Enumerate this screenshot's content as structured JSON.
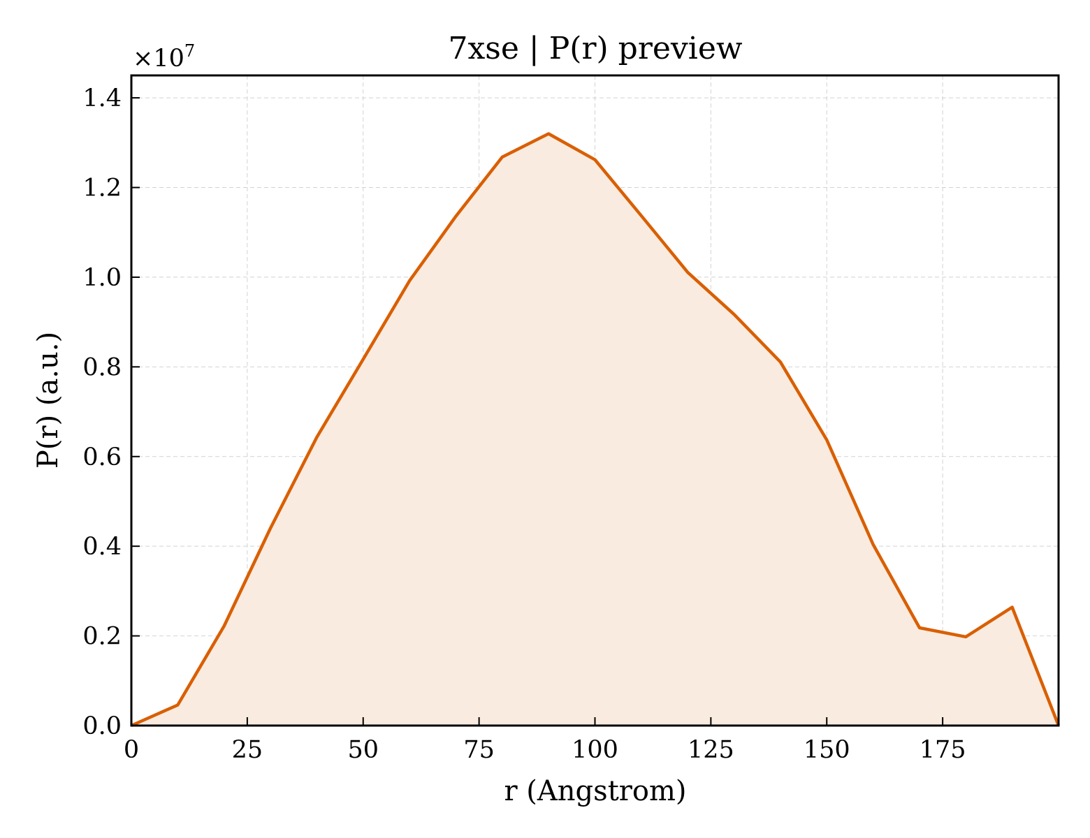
{
  "chart_data": {
    "type": "area",
    "title": "7xse | P(r) preview",
    "xlabel": "r (Angstrom)",
    "ylabel": "P(r) (a.u.)",
    "y_multiplier": {
      "base": "×10",
      "exponent": "7"
    },
    "xlim": [
      0,
      200
    ],
    "ylim": [
      0,
      1.45
    ],
    "xticks": [
      0,
      25,
      50,
      75,
      100,
      125,
      150,
      175
    ],
    "yticks": [
      0.0,
      0.2,
      0.4,
      0.6,
      0.8,
      1.0,
      1.2,
      1.4
    ],
    "xtick_labels": [
      "0",
      "25",
      "50",
      "75",
      "100",
      "125",
      "150",
      "175"
    ],
    "ytick_labels": [
      "0.0",
      "0.2",
      "0.4",
      "0.6",
      "0.8",
      "1.0",
      "1.2",
      "1.4"
    ],
    "grid": true,
    "colors": {
      "line": "#d95f02",
      "fill": "#f9ebe0"
    },
    "series": [
      {
        "x": [
          0,
          10,
          20,
          30,
          40,
          50,
          60,
          70,
          80,
          90,
          100,
          110,
          120,
          130,
          140,
          150,
          160,
          170,
          180,
          190,
          200
        ],
        "values": [
          0.0,
          0.046,
          0.222,
          0.44,
          0.643,
          0.817,
          0.992,
          1.136,
          1.268,
          1.32,
          1.262,
          1.137,
          1.011,
          0.917,
          0.811,
          0.637,
          0.404,
          0.218,
          0.198,
          0.264,
          0.0
        ]
      }
    ]
  }
}
